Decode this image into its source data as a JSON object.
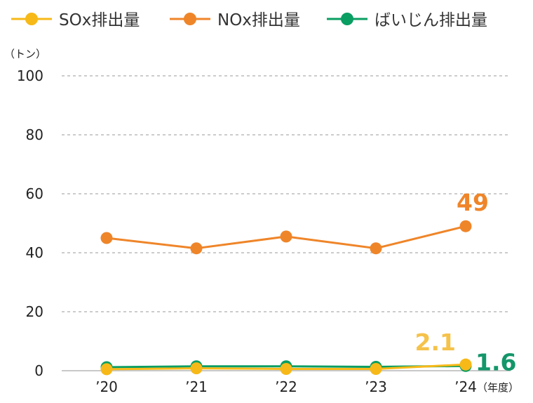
{
  "chart_data": {
    "type": "line",
    "categories": [
      "’20",
      "’21",
      "’22",
      "’23",
      "’24"
    ],
    "series": [
      {
        "name": "SOx排出量",
        "color": "#f7b918",
        "label_color": "#f5c24a",
        "values": [
          0.5,
          0.8,
          0.6,
          0.6,
          2.1
        ],
        "end_label": "2.1"
      },
      {
        "name": "NOx排出量",
        "color": "#ef8529",
        "label_color": "#ef8529",
        "values": [
          45,
          41.5,
          45.5,
          41.5,
          49
        ],
        "end_label": "49"
      },
      {
        "name": "ばいじん排出量",
        "color": "#0a9e62",
        "label_color": "#13966a",
        "values": [
          1.2,
          1.5,
          1.5,
          1.3,
          1.6
        ],
        "end_label": "1.6"
      }
    ],
    "y_ticks": [
      "0",
      "20",
      "40",
      "60",
      "80",
      "100"
    ],
    "ylim": [
      0,
      100
    ],
    "ylabel": "（トン）",
    "xlabel": "（年度）",
    "grid": "dashed horizontal",
    "legend": "top"
  }
}
